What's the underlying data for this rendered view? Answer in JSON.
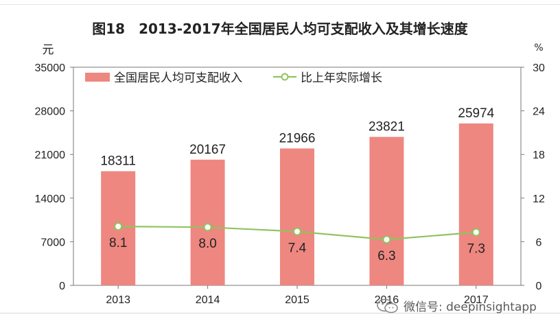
{
  "title": "图18　2013-2017年全国居民人均可支配收入及其增长速度",
  "watermark": {
    "text": "微信号: deepinsightapp",
    "icon": "wechat-icon"
  },
  "colors": {
    "bar": "#ee8780",
    "line": "#8fc45e",
    "axis": "#777777",
    "text": "#222222"
  },
  "chart_data": {
    "type": "bar",
    "categories": [
      "2013",
      "2014",
      "2015",
      "2016",
      "2017"
    ],
    "series": [
      {
        "name": "全国居民人均可支配收入",
        "type": "bar",
        "axis": "left",
        "values": [
          18311,
          20167,
          21966,
          23821,
          25974
        ],
        "labels": [
          "18311",
          "20167",
          "21966",
          "23821",
          "25974"
        ]
      },
      {
        "name": "比上年实际增长",
        "type": "line",
        "axis": "right",
        "values": [
          8.1,
          8.0,
          7.4,
          6.3,
          7.3
        ],
        "labels": [
          "8.1",
          "8.0",
          "7.4",
          "6.3",
          "7.3"
        ]
      }
    ],
    "y_left": {
      "label": "元",
      "lim": [
        0,
        35000
      ],
      "ticks": [
        "0",
        "7000",
        "14000",
        "21000",
        "28000",
        "35000"
      ]
    },
    "y_right": {
      "label": "%",
      "lim": [
        0,
        30
      ],
      "ticks": [
        "0",
        "6",
        "12",
        "18",
        "24",
        "30"
      ]
    },
    "legend": "top-left",
    "grid": false
  }
}
